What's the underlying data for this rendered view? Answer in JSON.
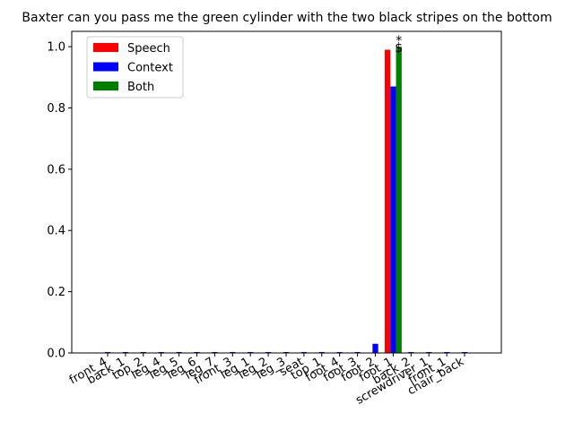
{
  "chart_data": {
    "type": "bar",
    "title": "Baxter can you pass me the green cylinder with the two black stripes on the bottom",
    "xlabel": "",
    "ylabel": "",
    "ylim": [
      0,
      1.05
    ],
    "yticks": [
      "0.0",
      "0.2",
      "0.4",
      "0.6",
      "0.8",
      "1.0"
    ],
    "grid": false,
    "legend_position": "top-left",
    "categories": [
      "front_4",
      "back_1",
      "top_2",
      "leg_4",
      "leg_5",
      "leg_6",
      "leg_7",
      "front_3",
      "leg_1",
      "leg_2",
      "leg_3",
      "seat",
      "top_1",
      "foot_4",
      "foot_3",
      "foot_2",
      "foot_1",
      "back_2",
      "screwdriver_1",
      "front_1",
      "chair_back"
    ],
    "series": [
      {
        "name": "Speech",
        "color": "#ff0000",
        "values": [
          0,
          0,
          0,
          0,
          0,
          0,
          0,
          0,
          0,
          0,
          0,
          0,
          0,
          0,
          0,
          0,
          0.99,
          0,
          0,
          0,
          0
        ]
      },
      {
        "name": "Context",
        "color": "#0000ff",
        "values": [
          0.003,
          0.003,
          0.003,
          0.003,
          0.003,
          0.003,
          0.003,
          0.003,
          0.003,
          0.003,
          0.003,
          0.003,
          0.003,
          0.003,
          0.003,
          0.03,
          0.87,
          0.003,
          0.003,
          0.003,
          0.003
        ]
      },
      {
        "name": "Both",
        "color": "#008000",
        "values": [
          0,
          0,
          0,
          0,
          0,
          0,
          0,
          0,
          0,
          0,
          0,
          0,
          0,
          0,
          0,
          0,
          1.0,
          0,
          0,
          0,
          0
        ]
      }
    ],
    "annotations": [
      {
        "category": "foot_1",
        "series": "Both",
        "text": "*"
      },
      {
        "category": "foot_1",
        "series": "Both",
        "text": "$"
      }
    ]
  }
}
